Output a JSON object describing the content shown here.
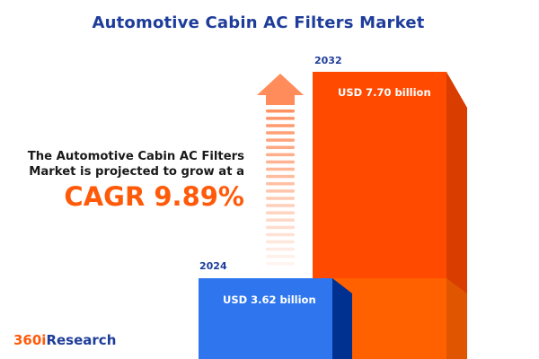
{
  "title": "Automotive Cabin AC Filters Market",
  "description_lines": [
    "The Automotive Cabin AC Filters",
    "Market is projected to grow at a"
  ],
  "cagr_label": "CAGR 9.89%",
  "logo": {
    "part1": "360i",
    "part2": "Research"
  },
  "colors": {
    "title": "#1e3d9a",
    "accent": "#ff5a0a",
    "bar_2024": "#2f76ee",
    "bar_2032": "#ff4a00",
    "arrow": "#ff8c5a"
  },
  "icons": {
    "growth": "up-arrow-icon"
  },
  "chart_data": {
    "type": "bar",
    "categories": [
      "2024",
      "2032"
    ],
    "values": [
      3.62,
      7.7
    ],
    "unit": "USD billion",
    "data_labels": [
      "USD 3.62 billion",
      "USD 7.70 billion"
    ],
    "cagr_percent": 9.89
  }
}
